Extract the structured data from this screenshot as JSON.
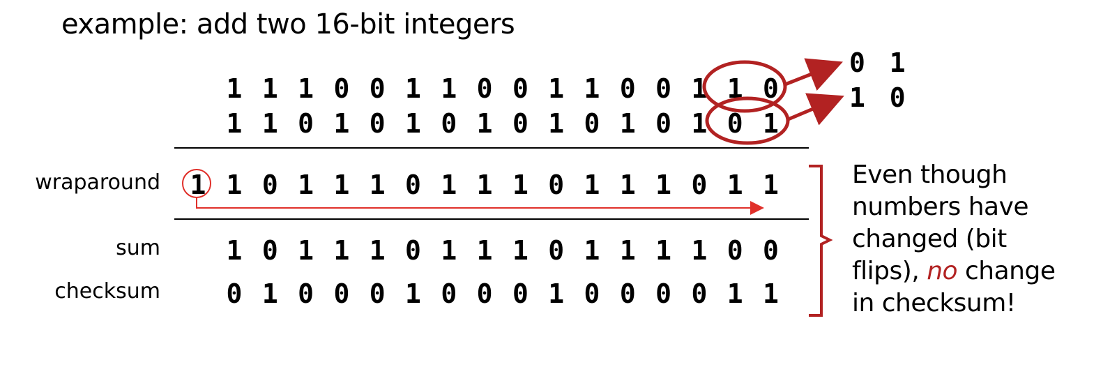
{
  "title": "example: add two 16-bit integers",
  "rows": {
    "a": {
      "label": "",
      "bits": [
        "1",
        "1",
        "1",
        "0",
        "0",
        "1",
        "1",
        "0",
        "0",
        "1",
        "1",
        "0",
        "0",
        "1",
        "1",
        "0"
      ]
    },
    "b": {
      "label": "",
      "bits": [
        "1",
        "1",
        "0",
        "1",
        "0",
        "1",
        "0",
        "1",
        "0",
        "1",
        "0",
        "1",
        "0",
        "1",
        "0",
        "1"
      ]
    },
    "wraparound": {
      "label": "wraparound",
      "carry": "1",
      "bits": [
        "1",
        "0",
        "1",
        "1",
        "1",
        "0",
        "1",
        "1",
        "1",
        "0",
        "1",
        "1",
        "1",
        "0",
        "1",
        "1"
      ]
    },
    "sum": {
      "label": "sum",
      "bits": [
        "1",
        "0",
        "1",
        "1",
        "1",
        "0",
        "1",
        "1",
        "1",
        "0",
        "1",
        "1",
        "1",
        "1",
        "0",
        "0"
      ]
    },
    "checksum": {
      "label": "checksum",
      "bits": [
        "0",
        "1",
        "0",
        "0",
        "0",
        "1",
        "0",
        "0",
        "0",
        "1",
        "0",
        "0",
        "0",
        "0",
        "1",
        "1"
      ]
    }
  },
  "flips": {
    "top": "0 1",
    "bottom": "1 0"
  },
  "note": {
    "line1": "Even though",
    "line2": "numbers have",
    "line3": "changed (bit",
    "line4a": "flips), ",
    "line4em": "no",
    "line4b": " change",
    "line5": "in checksum!"
  },
  "colors": {
    "accent": "#b22222",
    "arrow": "#e0302a"
  }
}
